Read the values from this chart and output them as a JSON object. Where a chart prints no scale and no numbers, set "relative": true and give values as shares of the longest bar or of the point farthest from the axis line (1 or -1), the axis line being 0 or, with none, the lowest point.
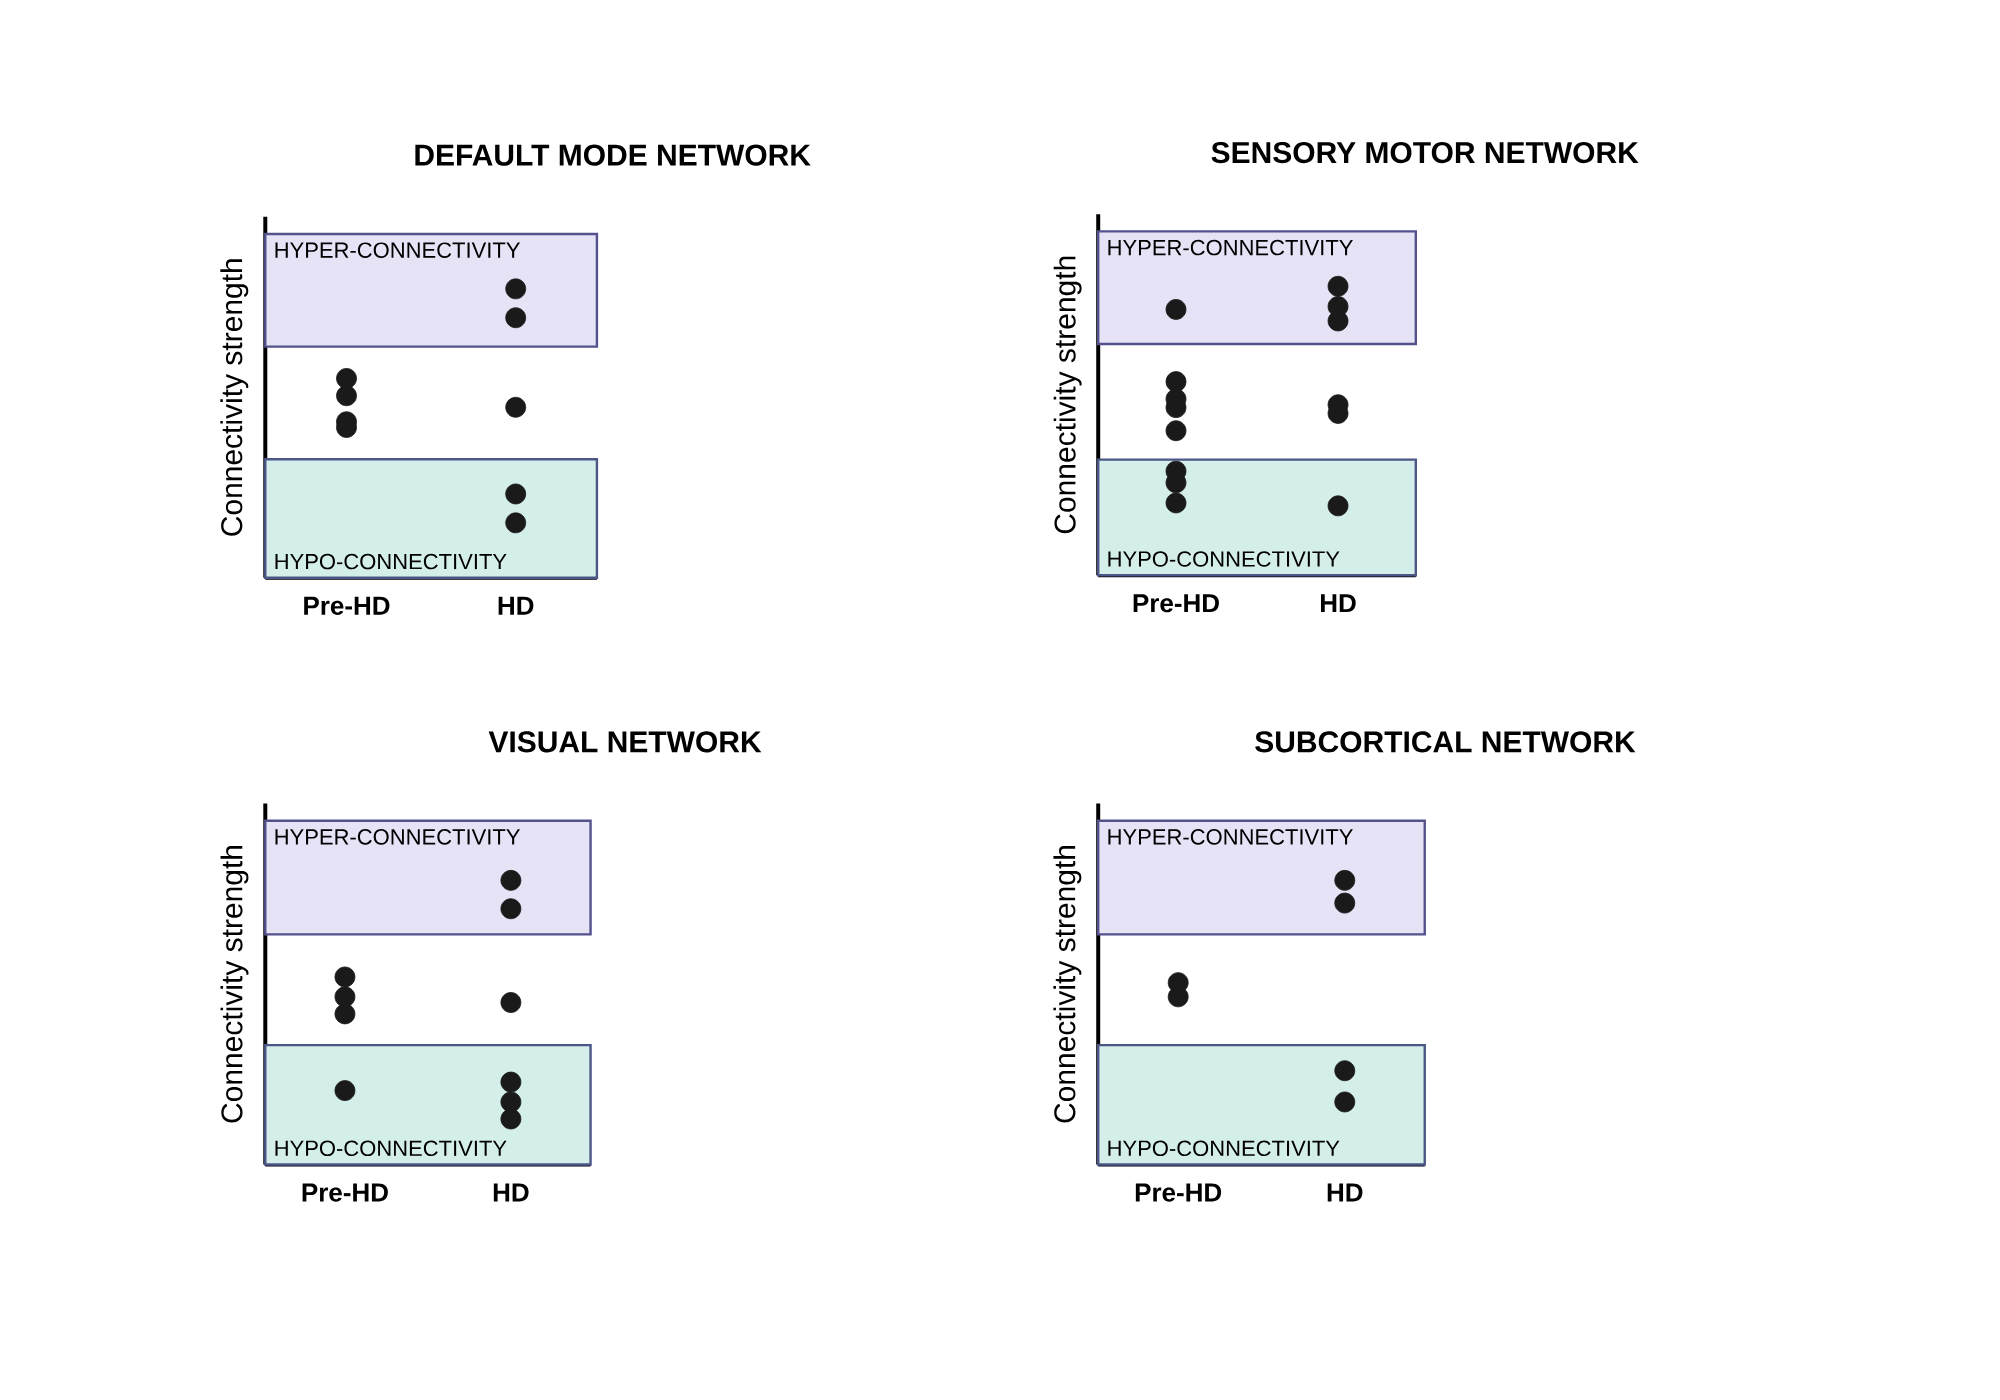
{
  "chart_data": [
    {
      "type": "scatter",
      "title": "DEFAULT MODE NETWORK",
      "ylabel": "Connectivity strength",
      "relative": true,
      "marker": "circle",
      "tick_labels": "x",
      "categories": [
        "Pre-HD",
        "HD"
      ],
      "series": [
        {
          "color": "#1a1a1a",
          "x": [
            "Pre-HD",
            "Pre-HD",
            "Pre-HD",
            "Pre-HD",
            "HD",
            "HD",
            "HD",
            "HD",
            "HD"
          ],
          "values": [
            0.63,
            0.69,
            0.52,
            0.54,
            1.0,
            0.9,
            0.59,
            0.29,
            0.19
          ]
        }
      ],
      "bands": [
        {
          "axis": "y",
          "from": 0.8,
          "to": 1.19,
          "label": "HYPER-CONNECTIVITY",
          "color": "#e6e3f7"
        },
        {
          "axis": "y",
          "from": 0,
          "to": 0.41,
          "label": "HYPO-CONNECTIVITY",
          "color": "#d4eeea"
        }
      ]
    },
    {
      "type": "scatter",
      "title": "SENSORY MOTOR NETWORK",
      "ylabel": "Connectivity strength",
      "relative": true,
      "marker": "circle",
      "tick_labels": "x",
      "categories": [
        "Pre-HD",
        "HD"
      ],
      "series": [
        {
          "color": "#1a1a1a",
          "x": [
            "Pre-HD",
            "HD",
            "HD",
            "HD",
            "Pre-HD",
            "Pre-HD",
            "Pre-HD",
            "Pre-HD",
            "HD",
            "HD",
            "Pre-HD",
            "Pre-HD",
            "Pre-HD",
            "HD"
          ],
          "values": [
            0.92,
            0.93,
            1.0,
            0.88,
            0.61,
            0.67,
            0.58,
            0.5,
            0.59,
            0.56,
            0.36,
            0.32,
            0.25,
            0.24
          ]
        }
      ],
      "bands": [
        {
          "axis": "y",
          "from": 0.8,
          "to": 1.19,
          "label": "HYPER-CONNECTIVITY",
          "color": "#e6e3f7"
        },
        {
          "axis": "y",
          "from": 0,
          "to": 0.4,
          "label": "HYPO-CONNECTIVITY",
          "color": "#d4eeea"
        }
      ]
    },
    {
      "type": "scatter",
      "title": "VISUAL NETWORK",
      "ylabel": "Connectivity strength",
      "relative": true,
      "marker": "circle",
      "tick_labels": "x",
      "categories": [
        "Pre-HD",
        "HD"
      ],
      "series": [
        {
          "color": "#1a1a1a",
          "x": [
            "HD",
            "HD",
            "Pre-HD",
            "Pre-HD",
            "Pre-HD",
            "HD",
            "Pre-HD",
            "HD",
            "HD",
            "HD"
          ],
          "values": [
            1.0,
            0.9,
            0.66,
            0.59,
            0.53,
            0.57,
            0.26,
            0.29,
            0.22,
            0.16
          ]
        }
      ],
      "bands": [
        {
          "axis": "y",
          "from": 0.81,
          "to": 1.21,
          "label": "HYPER-CONNECTIVITY",
          "color": "#e6e3f7"
        },
        {
          "axis": "y",
          "from": 0,
          "to": 0.42,
          "label": "HYPO-CONNECTIVITY",
          "color": "#d4eeea"
        }
      ]
    },
    {
      "type": "scatter",
      "title": "SUBCORTICAL NETWORK",
      "ylabel": "Connectivity strength",
      "relative": true,
      "marker": "circle",
      "tick_labels": "x",
      "categories": [
        "Pre-HD",
        "HD"
      ],
      "series": [
        {
          "color": "#1a1a1a",
          "x": [
            "HD",
            "HD",
            "Pre-HD",
            "Pre-HD",
            "HD",
            "HD"
          ],
          "values": [
            1.0,
            0.92,
            0.64,
            0.59,
            0.33,
            0.22
          ]
        }
      ],
      "bands": [
        {
          "axis": "y",
          "from": 0.81,
          "to": 1.21,
          "label": "HYPER-CONNECTIVITY",
          "color": "#e6e3f7"
        },
        {
          "axis": "y",
          "from": 0,
          "to": 0.42,
          "label": "HYPO-CONNECTIVITY",
          "color": "#d4eeea"
        }
      ]
    }
  ]
}
